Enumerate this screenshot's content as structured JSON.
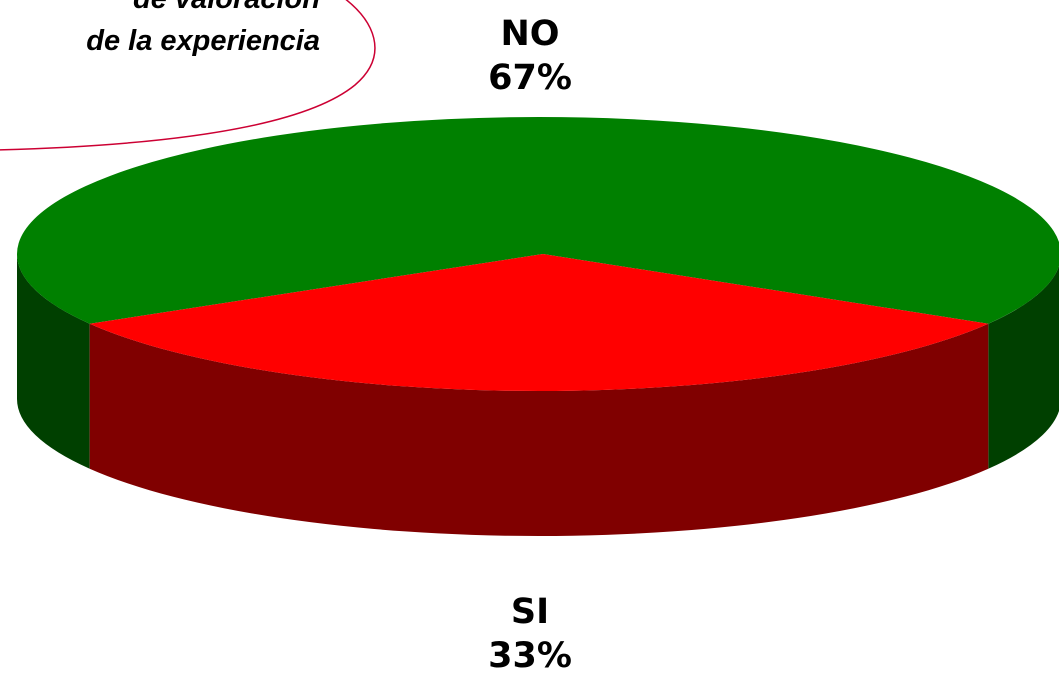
{
  "callout": {
    "line1": "de valoración",
    "line2": "de la experiencia"
  },
  "colors": {
    "no_top": "#008000",
    "no_side": "#004000",
    "si_top": "#ff0000",
    "si_side": "#800000",
    "callout_border": "#cc0033"
  },
  "chart_data": {
    "type": "pie",
    "style": "3d",
    "title": "",
    "categories": [
      "NO",
      "SI"
    ],
    "values": [
      67,
      33
    ],
    "labels": [
      {
        "name": "NO",
        "percent": "67%"
      },
      {
        "name": "SI",
        "percent": "33%"
      }
    ],
    "legend": "none"
  }
}
